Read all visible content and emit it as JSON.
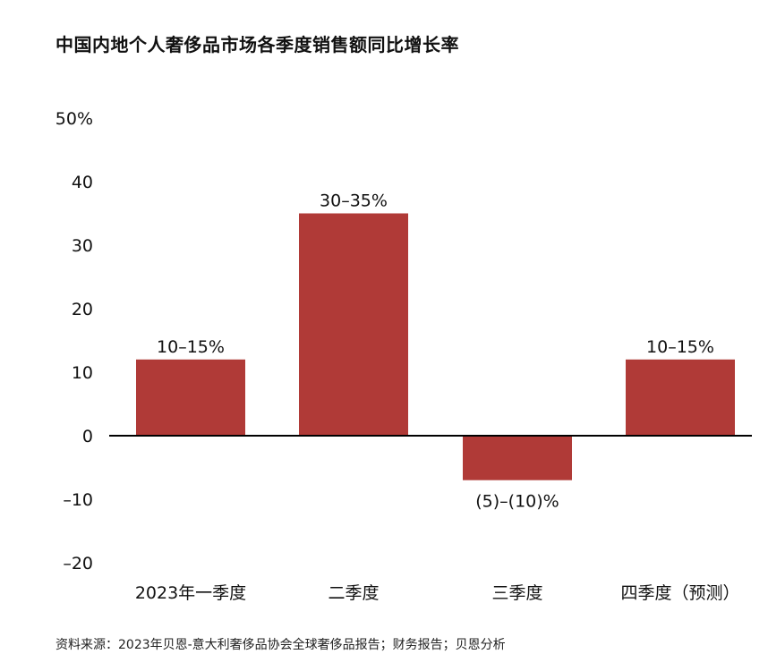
{
  "title": "中国内地个人奢侈品市场各季度销售额同比增长率",
  "source": "资料来源：2023年贝恩-意大利奢侈品协会全球奢侈品报告；财务报告；贝恩分析",
  "chart_data": {
    "type": "bar",
    "title": "中国内地个人奢侈品市场各季度销售额同比增长率",
    "categories": [
      "2023年一季度",
      "二季度",
      "三季度",
      "四季度（预测）"
    ],
    "values": [
      12,
      35,
      -7,
      12
    ],
    "data_labels": [
      "10–15%",
      "30–35%",
      "(5)–(10)%",
      "10–15%"
    ],
    "ylim": [
      -20,
      50
    ],
    "yticks": [
      50,
      40,
      30,
      20,
      10,
      0,
      -10,
      -20
    ],
    "ytick_labels": [
      "50%",
      "40",
      "30",
      "20",
      "10",
      "0",
      "–10",
      "–20"
    ],
    "bar_color": "#b03a37",
    "grid": false,
    "legend": "none"
  }
}
